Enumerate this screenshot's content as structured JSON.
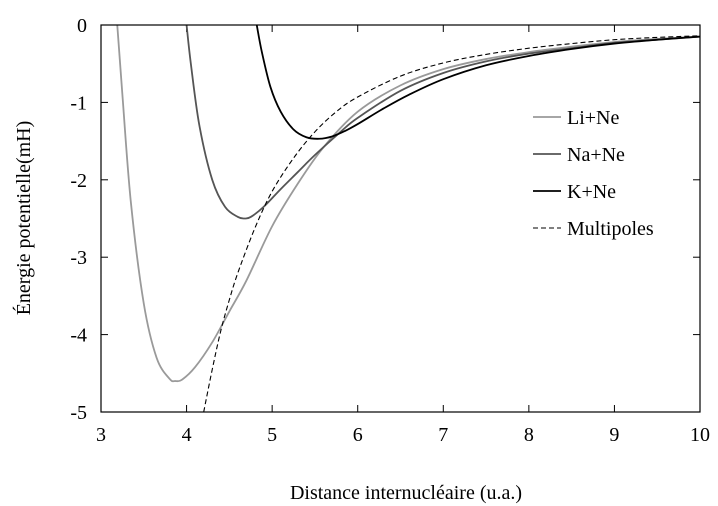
{
  "chart_data": {
    "type": "line",
    "xlabel": "Distance internucléaire (u.a.)",
    "ylabel": "Énergie potentielle(mH)",
    "xlim": [
      3,
      10
    ],
    "ylim": [
      -5,
      0
    ],
    "xticks": [
      "3",
      "4",
      "5",
      "6",
      "7",
      "8",
      "9",
      "10"
    ],
    "yticks": [
      "0",
      "-1",
      "-2",
      "-3",
      "-4",
      "-5"
    ],
    "grid": false,
    "legend_position": "right",
    "series": [
      {
        "name": "Li+Ne",
        "color": "#9a9a9a",
        "dash": "solid",
        "x": [
          3.19,
          3.25,
          3.35,
          3.5,
          3.65,
          3.8,
          3.87,
          3.95,
          4.1,
          4.3,
          4.5,
          4.7,
          5.0,
          5.3,
          5.6,
          6.0,
          6.5,
          7.0,
          7.5,
          8.0,
          8.5,
          9.0,
          9.5,
          10.0
        ],
        "y": [
          0.0,
          -0.9,
          -2.3,
          -3.6,
          -4.3,
          -4.57,
          -4.6,
          -4.58,
          -4.42,
          -4.1,
          -3.7,
          -3.3,
          -2.6,
          -2.05,
          -1.58,
          -1.12,
          -0.78,
          -0.57,
          -0.44,
          -0.35,
          -0.28,
          -0.22,
          -0.18,
          -0.15
        ]
      },
      {
        "name": "Na+Ne",
        "color": "#555555",
        "dash": "solid",
        "x": [
          4.0,
          4.05,
          4.15,
          4.3,
          4.45,
          4.6,
          4.68,
          4.75,
          4.9,
          5.1,
          5.3,
          5.5,
          5.8,
          6.0,
          6.5,
          7.0,
          7.5,
          8.0,
          8.5,
          9.0,
          9.5,
          10.0
        ],
        "y": [
          0.0,
          -0.5,
          -1.3,
          -2.0,
          -2.35,
          -2.48,
          -2.5,
          -2.48,
          -2.35,
          -2.12,
          -1.9,
          -1.68,
          -1.38,
          -1.2,
          -0.85,
          -0.62,
          -0.47,
          -0.37,
          -0.3,
          -0.23,
          -0.19,
          -0.15
        ]
      },
      {
        "name": "K+Ne",
        "color": "#000000",
        "dash": "solid",
        "x": [
          4.82,
          4.88,
          4.98,
          5.1,
          5.25,
          5.4,
          5.55,
          5.7,
          5.85,
          6.0,
          6.3,
          6.6,
          7.0,
          7.5,
          8.0,
          8.5,
          9.0,
          9.5,
          10.0
        ],
        "y": [
          0.0,
          -0.35,
          -0.8,
          -1.12,
          -1.35,
          -1.45,
          -1.47,
          -1.44,
          -1.37,
          -1.28,
          -1.08,
          -0.9,
          -0.7,
          -0.52,
          -0.4,
          -0.31,
          -0.24,
          -0.19,
          -0.15
        ]
      },
      {
        "name": "Multipoles",
        "color": "#000000",
        "dash": "dashed",
        "x": [
          4.2,
          4.3,
          4.4,
          4.5,
          4.6,
          4.8,
          5.0,
          5.25,
          5.5,
          5.75,
          6.0,
          6.5,
          7.0,
          7.5,
          8.0,
          8.5,
          9.0,
          9.5,
          10.0
        ],
        "y": [
          -5.0,
          -4.45,
          -3.95,
          -3.55,
          -3.2,
          -2.62,
          -2.15,
          -1.72,
          -1.38,
          -1.12,
          -0.93,
          -0.66,
          -0.49,
          -0.38,
          -0.3,
          -0.24,
          -0.19,
          -0.16,
          -0.14
        ]
      }
    ]
  }
}
